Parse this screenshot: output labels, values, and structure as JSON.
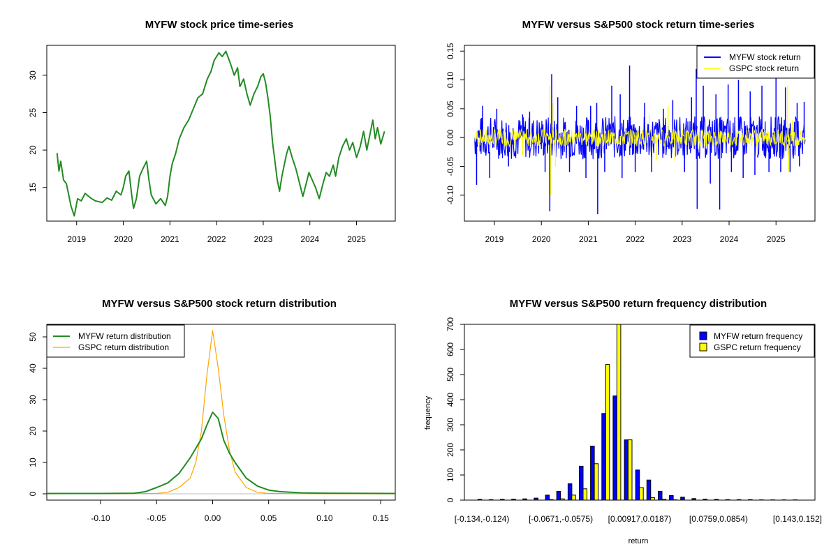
{
  "colors": {
    "myfw_price": "#228B22",
    "myfw_return": "#0000FF",
    "gspc_return": "#FFFF00",
    "gspc_density": "#FFA500",
    "bar_outline": "#000000"
  },
  "chart_data": [
    {
      "id": "price",
      "type": "line",
      "title": "MYFW stock price time-series",
      "xlabel": "",
      "ylabel": "",
      "xlim": [
        2018.36,
        2025.83
      ],
      "ylim": [
        10.5,
        34.0
      ],
      "x_ticks": [
        2019,
        2020,
        2021,
        2022,
        2023,
        2024,
        2025
      ],
      "x_tick_labels": [
        "2019",
        "2020",
        "2021",
        "2022",
        "2023",
        "2024",
        "2025"
      ],
      "y_ticks": [
        15,
        20,
        25,
        30
      ],
      "y_tick_labels": [
        "15",
        "20",
        "25",
        "30"
      ],
      "series": [
        {
          "name": "MYFW",
          "color": "#228B22",
          "points": [
            [
              2018.58,
              19.6
            ],
            [
              2018.62,
              17.2
            ],
            [
              2018.66,
              18.5
            ],
            [
              2018.72,
              16.0
            ],
            [
              2018.78,
              15.5
            ],
            [
              2018.83,
              14.0
            ],
            [
              2018.88,
              12.5
            ],
            [
              2018.95,
              11.2
            ],
            [
              2019.02,
              13.5
            ],
            [
              2019.1,
              13.2
            ],
            [
              2019.18,
              14.2
            ],
            [
              2019.3,
              13.6
            ],
            [
              2019.4,
              13.2
            ],
            [
              2019.55,
              13.0
            ],
            [
              2019.65,
              13.6
            ],
            [
              2019.75,
              13.3
            ],
            [
              2019.85,
              14.5
            ],
            [
              2019.95,
              14.0
            ],
            [
              2020.0,
              15.0
            ],
            [
              2020.05,
              16.5
            ],
            [
              2020.12,
              17.2
            ],
            [
              2020.18,
              14.0
            ],
            [
              2020.22,
              12.2
            ],
            [
              2020.28,
              13.5
            ],
            [
              2020.35,
              16.5
            ],
            [
              2020.42,
              17.5
            ],
            [
              2020.5,
              18.5
            ],
            [
              2020.55,
              16.0
            ],
            [
              2020.6,
              14.0
            ],
            [
              2020.7,
              12.8
            ],
            [
              2020.8,
              13.5
            ],
            [
              2020.9,
              12.6
            ],
            [
              2020.95,
              13.8
            ],
            [
              2021.0,
              16.5
            ],
            [
              2021.05,
              18.2
            ],
            [
              2021.12,
              19.5
            ],
            [
              2021.2,
              21.5
            ],
            [
              2021.3,
              23.0
            ],
            [
              2021.4,
              24.0
            ],
            [
              2021.5,
              25.5
            ],
            [
              2021.6,
              27.0
            ],
            [
              2021.7,
              27.5
            ],
            [
              2021.8,
              29.5
            ],
            [
              2021.88,
              30.5
            ],
            [
              2021.95,
              32.0
            ],
            [
              2022.05,
              33.0
            ],
            [
              2022.12,
              32.5
            ],
            [
              2022.2,
              33.2
            ],
            [
              2022.3,
              31.5
            ],
            [
              2022.38,
              30.0
            ],
            [
              2022.45,
              31.0
            ],
            [
              2022.5,
              28.5
            ],
            [
              2022.58,
              29.5
            ],
            [
              2022.65,
              27.5
            ],
            [
              2022.72,
              26.0
            ],
            [
              2022.8,
              27.5
            ],
            [
              2022.88,
              28.5
            ],
            [
              2022.95,
              29.8
            ],
            [
              2023.0,
              30.2
            ],
            [
              2023.05,
              29.0
            ],
            [
              2023.1,
              27.0
            ],
            [
              2023.15,
              24.5
            ],
            [
              2023.2,
              21.0
            ],
            [
              2023.25,
              18.5
            ],
            [
              2023.3,
              16.0
            ],
            [
              2023.35,
              14.5
            ],
            [
              2023.4,
              16.5
            ],
            [
              2023.45,
              18.0
            ],
            [
              2023.5,
              19.5
            ],
            [
              2023.55,
              20.5
            ],
            [
              2023.62,
              19.0
            ],
            [
              2023.7,
              17.5
            ],
            [
              2023.78,
              15.5
            ],
            [
              2023.85,
              13.8
            ],
            [
              2023.92,
              15.5
            ],
            [
              2023.98,
              17.0
            ],
            [
              2024.05,
              16.0
            ],
            [
              2024.12,
              15.0
            ],
            [
              2024.2,
              13.5
            ],
            [
              2024.28,
              15.5
            ],
            [
              2024.35,
              17.0
            ],
            [
              2024.42,
              16.5
            ],
            [
              2024.5,
              18.0
            ],
            [
              2024.55,
              16.5
            ],
            [
              2024.62,
              19.0
            ],
            [
              2024.7,
              20.5
            ],
            [
              2024.78,
              21.5
            ],
            [
              2024.85,
              20.0
            ],
            [
              2024.92,
              21.0
            ],
            [
              2025.0,
              19.0
            ],
            [
              2025.08,
              20.5
            ],
            [
              2025.15,
              22.5
            ],
            [
              2025.22,
              20.0
            ],
            [
              2025.3,
              22.5
            ],
            [
              2025.35,
              24.0
            ],
            [
              2025.4,
              21.5
            ],
            [
              2025.45,
              23.0
            ],
            [
              2025.52,
              20.8
            ],
            [
              2025.6,
              22.5
            ]
          ]
        }
      ]
    },
    {
      "id": "returns",
      "type": "line",
      "title": "MYFW versus S&P500 stock return time-series",
      "xlabel": "",
      "ylabel": "",
      "xlim": [
        2018.36,
        2025.83
      ],
      "ylim": [
        -0.145,
        0.16
      ],
      "x_ticks": [
        2019,
        2020,
        2021,
        2022,
        2023,
        2024,
        2025
      ],
      "x_tick_labels": [
        "2019",
        "2020",
        "2021",
        "2022",
        "2023",
        "2024",
        "2025"
      ],
      "y_ticks": [
        -0.1,
        -0.05,
        0.0,
        0.05,
        0.1,
        0.15
      ],
      "y_tick_labels": [
        "-0.10",
        "-0.05",
        "0.00",
        "0.05",
        "0.10",
        "0.15"
      ],
      "legend_position": "top-right",
      "legend": [
        "MYFW stock return",
        "GSPC stock return"
      ],
      "series": [
        {
          "name": "MYFW stock return",
          "color": "#0000FF",
          "spikes": [
            [
              2018.62,
              -0.082
            ],
            [
              2018.75,
              0.055
            ],
            [
              2018.9,
              -0.07
            ],
            [
              2019.05,
              0.05
            ],
            [
              2019.3,
              -0.05
            ],
            [
              2019.6,
              0.04
            ],
            [
              2019.75,
              0.045
            ],
            [
              2020.08,
              -0.06
            ],
            [
              2020.18,
              -0.128
            ],
            [
              2020.22,
              0.11
            ],
            [
              2020.35,
              0.07
            ],
            [
              2020.6,
              -0.06
            ],
            [
              2020.75,
              0.055
            ],
            [
              2020.95,
              -0.07
            ],
            [
              2021.05,
              0.055
            ],
            [
              2021.18,
              0.06
            ],
            [
              2021.2,
              -0.133
            ],
            [
              2021.35,
              -0.06
            ],
            [
              2021.5,
              0.09
            ],
            [
              2021.68,
              0.075
            ],
            [
              2021.72,
              -0.07
            ],
            [
              2021.88,
              0.125
            ],
            [
              2022.0,
              -0.06
            ],
            [
              2022.2,
              0.06
            ],
            [
              2022.35,
              -0.06
            ],
            [
              2022.6,
              0.05
            ],
            [
              2022.8,
              0.065
            ],
            [
              2023.05,
              -0.06
            ],
            [
              2023.2,
              0.07
            ],
            [
              2023.3,
              0.119
            ],
            [
              2023.32,
              -0.124
            ],
            [
              2023.45,
              0.09
            ],
            [
              2023.6,
              -0.08
            ],
            [
              2023.72,
              0.075
            ],
            [
              2023.8,
              -0.125
            ],
            [
              2023.98,
              0.092
            ],
            [
              2024.05,
              -0.06
            ],
            [
              2024.2,
              0.1
            ],
            [
              2024.3,
              -0.07
            ],
            [
              2024.45,
              0.08
            ],
            [
              2024.55,
              -0.065
            ],
            [
              2024.7,
              0.09
            ],
            [
              2024.85,
              -0.06
            ],
            [
              2025.0,
              0.107
            ],
            [
              2025.1,
              -0.06
            ],
            [
              2025.2,
              0.087
            ],
            [
              2025.3,
              -0.06
            ],
            [
              2025.45,
              0.06
            ],
            [
              2025.5,
              -0.05
            ],
            [
              2025.6,
              0.062
            ]
          ]
        },
        {
          "name": "GSPC stock return",
          "color": "#FFFF00",
          "spikes": [
            [
              2018.9,
              -0.025
            ],
            [
              2019.6,
              -0.03
            ],
            [
              2020.18,
              0.09
            ],
            [
              2020.2,
              -0.1
            ],
            [
              2020.25,
              0.06
            ],
            [
              2020.3,
              -0.05
            ],
            [
              2021.2,
              -0.02
            ],
            [
              2022.3,
              0.04
            ],
            [
              2022.45,
              -0.04
            ],
            [
              2022.7,
              0.055
            ],
            [
              2022.85,
              -0.04
            ],
            [
              2024.6,
              -0.03
            ],
            [
              2025.25,
              0.09
            ],
            [
              2025.27,
              -0.06
            ],
            [
              2025.35,
              0.03
            ]
          ]
        }
      ]
    },
    {
      "id": "density",
      "type": "line",
      "title": "MYFW versus S&P500 stock return distribution",
      "xlabel": "",
      "ylabel": "",
      "xlim": [
        -0.148,
        0.163
      ],
      "ylim": [
        -2.0,
        54.0
      ],
      "x_ticks": [
        -0.1,
        -0.05,
        0.0,
        0.05,
        0.1,
        0.15
      ],
      "x_tick_labels": [
        "-0.10",
        "-0.05",
        "0.00",
        "0.05",
        "0.10",
        "0.15"
      ],
      "y_ticks": [
        0,
        10,
        20,
        30,
        40,
        50
      ],
      "y_tick_labels": [
        "0",
        "10",
        "20",
        "30",
        "40",
        "50"
      ],
      "legend_position": "top-left",
      "legend": [
        "MYFW return distribution",
        "GSPC return distribution"
      ],
      "series": [
        {
          "name": "MYFW return distribution",
          "color": "#228B22",
          "points": [
            [
              -0.148,
              0.1
            ],
            [
              -0.1,
              0.1
            ],
            [
              -0.07,
              0.2
            ],
            [
              -0.06,
              0.7
            ],
            [
              -0.05,
              2.0
            ],
            [
              -0.04,
              3.5
            ],
            [
              -0.03,
              6.5
            ],
            [
              -0.02,
              11.5
            ],
            [
              -0.01,
              17.5
            ],
            [
              -0.005,
              22.0
            ],
            [
              0.0,
              26.0
            ],
            [
              0.005,
              24.0
            ],
            [
              0.01,
              17.0
            ],
            [
              0.015,
              13.0
            ],
            [
              0.02,
              10.0
            ],
            [
              0.03,
              5.0
            ],
            [
              0.04,
              2.5
            ],
            [
              0.05,
              1.2
            ],
            [
              0.06,
              0.7
            ],
            [
              0.08,
              0.3
            ],
            [
              0.1,
              0.2
            ],
            [
              0.163,
              0.1
            ]
          ]
        },
        {
          "name": "GSPC return distribution",
          "color": "#FFA500",
          "points": [
            [
              -0.148,
              0.0
            ],
            [
              -0.05,
              0.1
            ],
            [
              -0.04,
              0.5
            ],
            [
              -0.03,
              2.0
            ],
            [
              -0.02,
              5.0
            ],
            [
              -0.015,
              10.0
            ],
            [
              -0.01,
              20.0
            ],
            [
              -0.005,
              38.0
            ],
            [
              0.0,
              52.0
            ],
            [
              0.005,
              40.0
            ],
            [
              0.01,
              25.0
            ],
            [
              0.015,
              14.0
            ],
            [
              0.02,
              7.0
            ],
            [
              0.03,
              2.0
            ],
            [
              0.04,
              0.5
            ],
            [
              0.05,
              0.1
            ],
            [
              0.163,
              0.0
            ]
          ]
        }
      ]
    },
    {
      "id": "frequency",
      "type": "bar",
      "title": "MYFW versus S&P500 return frequency distribution",
      "xlabel": "return",
      "ylabel": "frequency",
      "ylim": [
        0,
        700
      ],
      "y_ticks": [
        0,
        100,
        200,
        300,
        400,
        500,
        600,
        700
      ],
      "y_tick_labels": [
        "0",
        "100",
        "200",
        "300",
        "400",
        "500",
        "600",
        "700"
      ],
      "visible_x_labels": [
        {
          "bin": 0,
          "label": "[-0.134,-0.124)"
        },
        {
          "bin": 7,
          "label": "[-0.0671,-0.0575)"
        },
        {
          "bin": 14,
          "label": "[0.00917,0.0187)"
        },
        {
          "bin": 21,
          "label": "[0.0759,0.0854)"
        },
        {
          "bin": 28,
          "label": "[0.143,0.152]"
        }
      ],
      "legend_position": "top-right",
      "legend": [
        "MYFW return frequency",
        "GSPC return frequency"
      ],
      "series": [
        {
          "name": "MYFW return frequency",
          "color": "#0000FF",
          "values": [
            3,
            2,
            3,
            4,
            5,
            8,
            20,
            35,
            65,
            135,
            215,
            345,
            415,
            240,
            120,
            80,
            35,
            18,
            12,
            6,
            4,
            3,
            2,
            2,
            2,
            1,
            1,
            1,
            1
          ]
        },
        {
          "name": "GSPC return frequency",
          "color": "#FFFF00",
          "values": [
            0,
            0,
            0,
            0,
            0,
            0,
            2,
            5,
            20,
            45,
            145,
            540,
            705,
            240,
            50,
            10,
            3,
            1,
            0,
            0,
            0,
            0,
            0,
            0,
            0,
            0,
            0,
            0,
            0
          ]
        }
      ]
    }
  ]
}
